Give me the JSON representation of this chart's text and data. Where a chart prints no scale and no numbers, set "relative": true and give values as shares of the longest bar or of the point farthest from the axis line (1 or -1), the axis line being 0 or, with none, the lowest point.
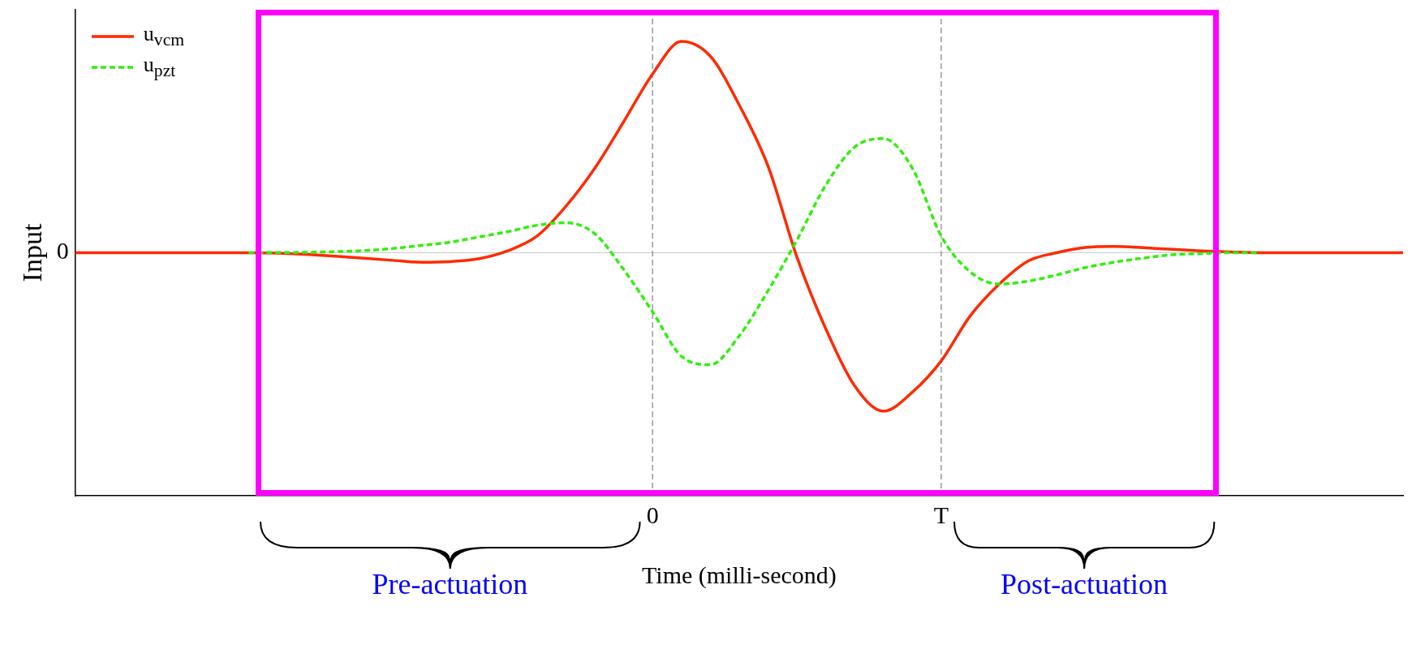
{
  "chart_data": {
    "type": "line",
    "relative": true,
    "xlabel": "Time (milli-second)",
    "ylabel": "Input",
    "categories": [
      null,
      null,
      null,
      null,
      null,
      null,
      null,
      null,
      null,
      null,
      null,
      null,
      null,
      null,
      null,
      null,
      null,
      null,
      null,
      null,
      "0",
      null,
      null,
      null,
      null,
      null,
      null,
      null,
      null,
      null,
      "T",
      null,
      null,
      null,
      null,
      null,
      null,
      null,
      null,
      null,
      null,
      null,
      null,
      null,
      null,
      null,
      null
    ],
    "grid": false,
    "legend": "top left",
    "series": [
      {
        "name": "u$_{vcm}$",
        "color": "#ff2a00",
        "line_style": "solid",
        "values": [
          0,
          0,
          0,
          0,
          0,
          0,
          0,
          -0.002,
          -0.008,
          -0.016,
          -0.026,
          -0.036,
          -0.045,
          -0.042,
          -0.028,
          0.01,
          0.079,
          0.22,
          0.4,
          0.62,
          0.846,
          1,
          0.93,
          0.7,
          0.41,
          -0.02,
          -0.36,
          -0.63,
          -0.75,
          -0.66,
          -0.512,
          -0.3,
          -0.15,
          -0.04,
          0,
          0.025,
          0.03,
          0.024,
          0.016,
          0.009,
          0.004,
          0,
          0,
          0,
          0,
          0,
          0
        ]
      },
      {
        "name": "u$_{pzt}$",
        "color": "#33ee11",
        "line_style": "dashed",
        "values": [
          null,
          null,
          null,
          null,
          null,
          null,
          0,
          0.001,
          0.002,
          0.005,
          0.01,
          0.02,
          0.035,
          0.05,
          0.075,
          0.1,
          0.13,
          0.142,
          0.09,
          -0.08,
          -0.28,
          -0.49,
          -0.53,
          -0.394,
          -0.18,
          0.06,
          0.32,
          0.5,
          0.54,
          0.4,
          0.079,
          -0.09,
          -0.148,
          -0.135,
          -0.105,
          -0.07,
          -0.045,
          -0.025,
          -0.01,
          -0.004,
          0,
          0,
          null,
          null,
          null,
          null,
          null
        ]
      }
    ],
    "ref_lines": [
      {
        "axis": "y",
        "value": 0,
        "label": "0",
        "color": "#cccccc",
        "line_style": "solid"
      },
      {
        "axis": "x",
        "value": "0",
        "color": "#999999",
        "line_style": "dashed"
      },
      {
        "axis": "x",
        "value": "T",
        "color": "#999999",
        "line_style": "dashed"
      }
    ],
    "annotations": [
      "Pre-actuation",
      "Post-actuation"
    ]
  }
}
